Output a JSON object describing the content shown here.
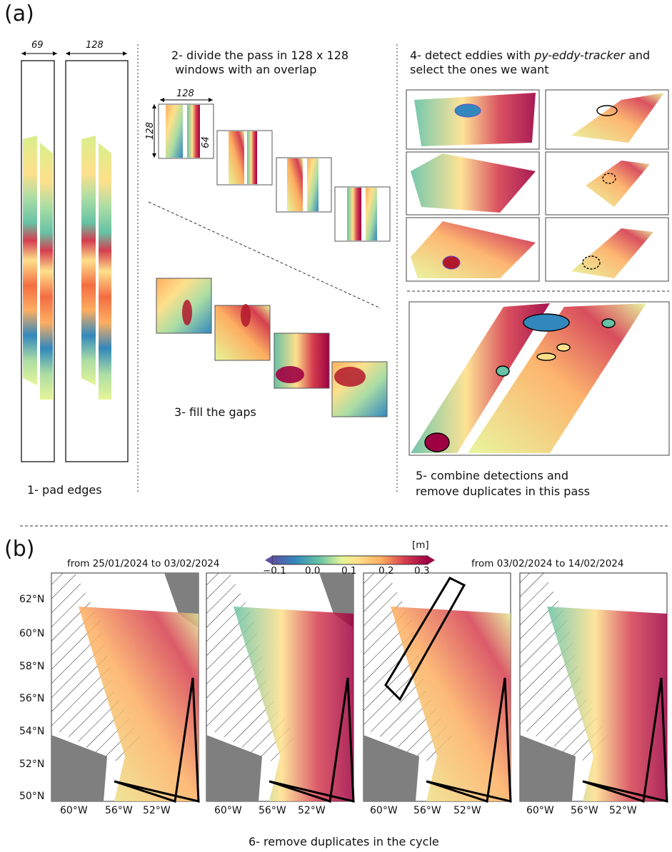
{
  "panel_a": {
    "label": "(a)",
    "step1": "1- pad edges",
    "step2_line1": "2- divide the pass in 128 x 128",
    "step2_line2": " windows with an overlap",
    "step3": "3- fill the gaps",
    "step4_line1_pre": "4- detect eddies with ",
    "step4_tool": "py-eddy-tracker",
    "step4_line1_post": " and",
    "step4_line2": "select the ones we want",
    "step5_line1": "5- combine detections and",
    "step5_line2": "remove duplicates in this pass",
    "dims": {
      "pass_width": "69",
      "padded_width": "128",
      "window_width": "128",
      "window_height": "128",
      "overlap": "64"
    }
  },
  "panel_b": {
    "label": "(b)",
    "period1": "from 25/01/2024 to 03/02/2024",
    "period2": "from 03/02/2024 to 14/02/2024",
    "colorbar": {
      "unit": "[m]",
      "ticks": [
        "−0.1",
        "0.0",
        "0.1",
        "0.2",
        "0.3"
      ]
    },
    "lat_ticks": [
      "62°N",
      "60°N",
      "58°N",
      "56°N",
      "54°N",
      "52°N",
      "50°N"
    ],
    "lon_ticks": [
      "60°W",
      "56°W",
      "52°W"
    ],
    "step6": "6- remove duplicates in the cycle"
  },
  "colors": {
    "ssh_low": "#3f6fb5",
    "ssh_mid": "#f7f3b0",
    "ssh_high": "#9e0142",
    "cyclone": "#5a4fcf",
    "anticyclone": "#b2182b",
    "land": "#7f7f7f"
  }
}
